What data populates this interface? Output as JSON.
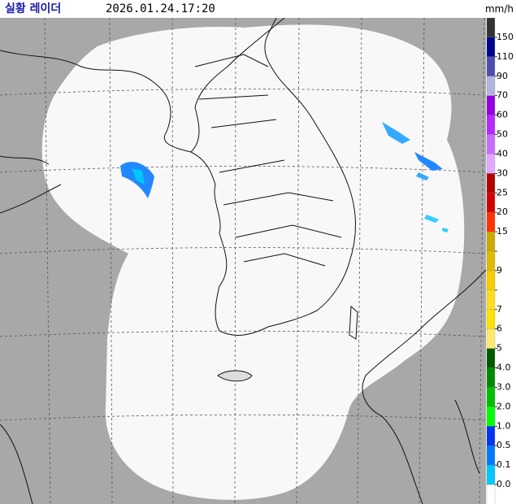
{
  "header": {
    "title": "실황 레이더",
    "time": "2026.01.24.17:20"
  },
  "legend": {
    "unit": "mm/h",
    "colors": [
      "#333333",
      "#000390",
      "#4c4eb1",
      "#b3b4de",
      "#9300e4",
      "#b329ff",
      "#c96dff",
      "#e0a9ff",
      "#b40000",
      "#d20000",
      "#ff3200",
      "#ccaa00",
      "#e0b900",
      "#f9cd00",
      "#ffdc1f",
      "#ffe100",
      "#ffea6e",
      "#005a00",
      "#008c00",
      "#00be00",
      "#00ff00",
      "#0033f5",
      "#0077ff",
      "#00c8ff",
      "#ffffff"
    ],
    "ticks": [
      "150",
      "110",
      "90",
      "70",
      "60",
      "50",
      "40",
      "30",
      "25",
      "20",
      "15",
      null,
      "9",
      null,
      "7",
      "6",
      "5",
      "4.0",
      "3.0",
      "2.0",
      "1.0",
      "0.5",
      "0.1",
      "0.0"
    ]
  }
}
